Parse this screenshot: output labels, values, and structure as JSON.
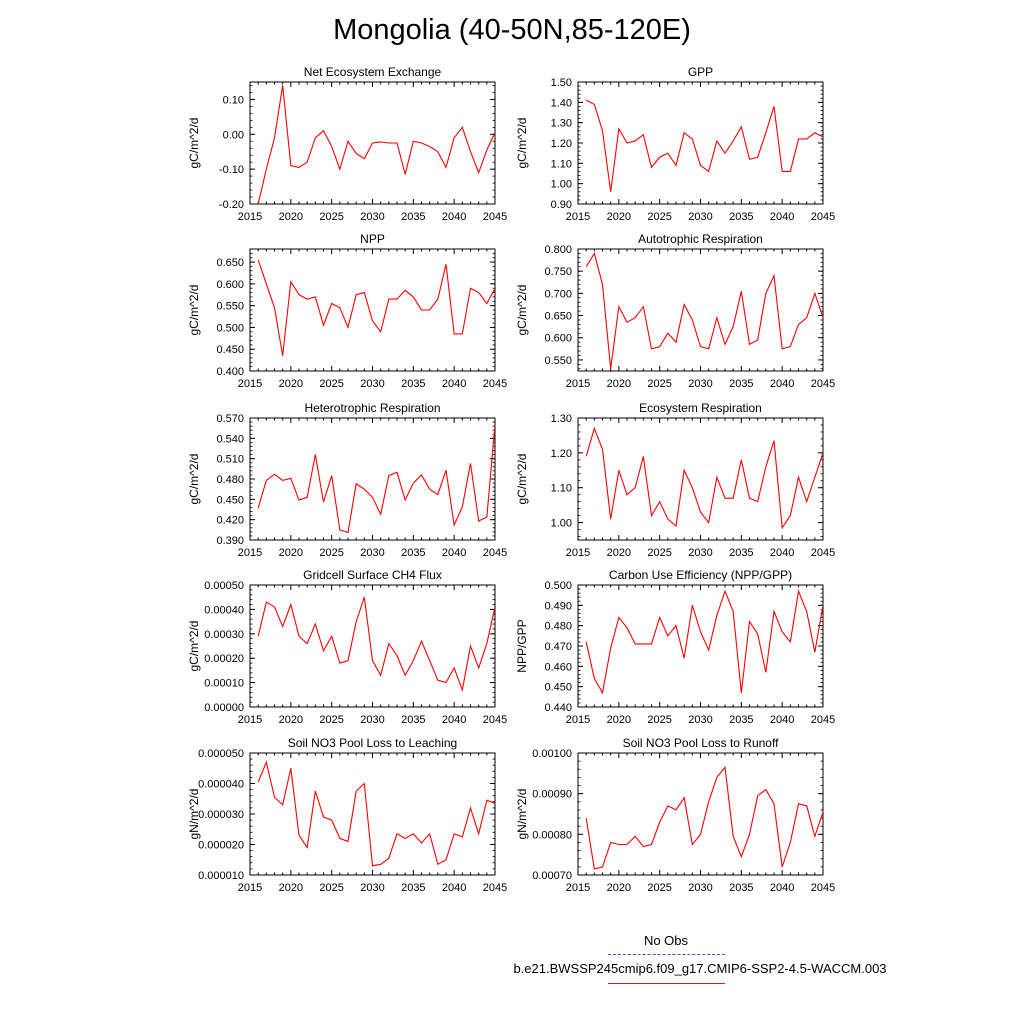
{
  "title": "Mongolia (40-50N,85-120E)",
  "colors": {
    "line": "#ff0000",
    "obs_line": "#4a4ad8",
    "axis": "#000000"
  },
  "legend": {
    "obs_label": "No Obs",
    "sim_label": "b.e21.BWSSP245cmip6.f09_g17.CMIP6-SSP2-4.5-WACCM.003"
  },
  "chart_data": [
    {
      "type": "line",
      "title": "Net Ecosystem Exchange",
      "ylabel": "gC/m^2/d",
      "xlim": [
        2015,
        2045
      ],
      "ylim": [
        -0.2,
        0.15
      ],
      "xticks": [
        2015,
        2020,
        2025,
        2030,
        2035,
        2040,
        2045
      ],
      "xtick_labels": [
        "2015",
        "2020",
        "2025",
        "2030",
        "2035",
        "2040",
        "2045"
      ],
      "yticks": [
        -0.2,
        -0.1,
        0.0,
        0.1
      ],
      "ytick_labels": [
        "-0.20",
        "-0.10",
        "0.00",
        "0.10"
      ],
      "x": [
        2016,
        2017,
        2018,
        2019,
        2020,
        2021,
        2022,
        2023,
        2024,
        2025,
        2026,
        2027,
        2028,
        2029,
        2030,
        2031,
        2032,
        2033,
        2034,
        2035,
        2036,
        2037,
        2038,
        2039,
        2040,
        2041,
        2042,
        2043,
        2044,
        2045
      ],
      "values": [
        -0.2,
        -0.1,
        -0.01,
        0.14,
        -0.09,
        -0.095,
        -0.08,
        -0.01,
        0.01,
        -0.035,
        -0.1,
        -0.02,
        -0.055,
        -0.07,
        -0.025,
        -0.022,
        -0.025,
        -0.025,
        -0.115,
        -0.02,
        -0.025,
        -0.035,
        -0.05,
        -0.095,
        -0.01,
        0.02,
        -0.05,
        -0.11,
        -0.045,
        0.005
      ]
    },
    {
      "type": "line",
      "title": "GPP",
      "ylabel": "gC/m^2/d",
      "xlim": [
        2015,
        2045
      ],
      "ylim": [
        0.9,
        1.5
      ],
      "xticks": [
        2015,
        2020,
        2025,
        2030,
        2035,
        2040,
        2045
      ],
      "xtick_labels": [
        "2015",
        "2020",
        "2025",
        "2030",
        "2035",
        "2040",
        "2045"
      ],
      "yticks": [
        0.9,
        1.0,
        1.1,
        1.2,
        1.3,
        1.4,
        1.5
      ],
      "ytick_labels": [
        "0.90",
        "1.00",
        "1.10",
        "1.20",
        "1.30",
        "1.40",
        "1.50"
      ],
      "x": [
        2016,
        2017,
        2018,
        2019,
        2020,
        2021,
        2022,
        2023,
        2024,
        2025,
        2026,
        2027,
        2028,
        2029,
        2030,
        2031,
        2032,
        2033,
        2034,
        2035,
        2036,
        2037,
        2038,
        2039,
        2040,
        2041,
        2042,
        2043,
        2044,
        2045
      ],
      "values": [
        1.41,
        1.39,
        1.26,
        0.96,
        1.27,
        1.2,
        1.21,
        1.24,
        1.08,
        1.13,
        1.15,
        1.09,
        1.25,
        1.22,
        1.09,
        1.06,
        1.21,
        1.15,
        1.21,
        1.28,
        1.12,
        1.13,
        1.25,
        1.38,
        1.06,
        1.06,
        1.22,
        1.22,
        1.25,
        1.23
      ]
    },
    {
      "type": "line",
      "title": "NPP",
      "ylabel": "gC/m^2/d",
      "xlim": [
        2015,
        2045
      ],
      "ylim": [
        0.4,
        0.68
      ],
      "xticks": [
        2015,
        2020,
        2025,
        2030,
        2035,
        2040,
        2045
      ],
      "xtick_labels": [
        "2015",
        "2020",
        "2025",
        "2030",
        "2035",
        "2040",
        "2045"
      ],
      "yticks": [
        0.4,
        0.45,
        0.5,
        0.55,
        0.6,
        0.65
      ],
      "ytick_labels": [
        "0.400",
        "0.450",
        "0.500",
        "0.550",
        "0.600",
        "0.650"
      ],
      "x": [
        2016,
        2017,
        2018,
        2019,
        2020,
        2021,
        2022,
        2023,
        2024,
        2025,
        2026,
        2027,
        2028,
        2029,
        2030,
        2031,
        2032,
        2033,
        2034,
        2035,
        2036,
        2037,
        2038,
        2039,
        2040,
        2041,
        2042,
        2043,
        2044,
        2045
      ],
      "values": [
        0.655,
        0.6,
        0.545,
        0.435,
        0.605,
        0.575,
        0.565,
        0.57,
        0.505,
        0.555,
        0.545,
        0.5,
        0.575,
        0.58,
        0.515,
        0.49,
        0.565,
        0.565,
        0.585,
        0.57,
        0.54,
        0.54,
        0.565,
        0.645,
        0.485,
        0.485,
        0.59,
        0.58,
        0.555,
        0.59
      ]
    },
    {
      "type": "line",
      "title": "Autotrophic Respiration",
      "ylabel": "gC/m^2/d",
      "xlim": [
        2015,
        2045
      ],
      "ylim": [
        0.525,
        0.8
      ],
      "xticks": [
        2015,
        2020,
        2025,
        2030,
        2035,
        2040,
        2045
      ],
      "xtick_labels": [
        "2015",
        "2020",
        "2025",
        "2030",
        "2035",
        "2040",
        "2045"
      ],
      "yticks": [
        0.55,
        0.6,
        0.65,
        0.7,
        0.75,
        0.8
      ],
      "ytick_labels": [
        "0.550",
        "0.600",
        "0.650",
        "0.700",
        "0.750",
        "0.800"
      ],
      "x": [
        2016,
        2017,
        2018,
        2019,
        2020,
        2021,
        2022,
        2023,
        2024,
        2025,
        2026,
        2027,
        2028,
        2029,
        2030,
        2031,
        2032,
        2033,
        2034,
        2035,
        2036,
        2037,
        2038,
        2039,
        2040,
        2041,
        2042,
        2043,
        2044,
        2045
      ],
      "values": [
        0.76,
        0.79,
        0.72,
        0.53,
        0.67,
        0.635,
        0.645,
        0.67,
        0.575,
        0.58,
        0.61,
        0.59,
        0.675,
        0.64,
        0.58,
        0.575,
        0.645,
        0.585,
        0.625,
        0.705,
        0.585,
        0.595,
        0.7,
        0.74,
        0.575,
        0.58,
        0.63,
        0.645,
        0.7,
        0.645
      ]
    },
    {
      "type": "line",
      "title": "Heterotrophic Respiration",
      "ylabel": "gC/m^2/d",
      "xlim": [
        2015,
        2045
      ],
      "ylim": [
        0.39,
        0.57
      ],
      "xticks": [
        2015,
        2020,
        2025,
        2030,
        2035,
        2040,
        2045
      ],
      "xtick_labels": [
        "2015",
        "2020",
        "2025",
        "2030",
        "2035",
        "2040",
        "2045"
      ],
      "yticks": [
        0.39,
        0.42,
        0.45,
        0.48,
        0.51,
        0.54,
        0.57
      ],
      "ytick_labels": [
        "0.390",
        "0.420",
        "0.450",
        "0.480",
        "0.510",
        "0.540",
        "0.570"
      ],
      "x": [
        2016,
        2017,
        2018,
        2019,
        2020,
        2021,
        2022,
        2023,
        2024,
        2025,
        2026,
        2027,
        2028,
        2029,
        2030,
        2031,
        2032,
        2033,
        2034,
        2035,
        2036,
        2037,
        2038,
        2039,
        2040,
        2041,
        2042,
        2043,
        2044,
        2045
      ],
      "values": [
        0.437,
        0.478,
        0.487,
        0.478,
        0.481,
        0.449,
        0.453,
        0.516,
        0.446,
        0.485,
        0.405,
        0.401,
        0.473,
        0.465,
        0.453,
        0.428,
        0.485,
        0.49,
        0.449,
        0.474,
        0.486,
        0.465,
        0.457,
        0.493,
        0.412,
        0.439,
        0.503,
        0.418,
        0.424,
        0.56
      ]
    },
    {
      "type": "line",
      "title": "Ecosystem Respiration",
      "ylabel": "gC/m^2/d",
      "xlim": [
        2015,
        2045
      ],
      "ylim": [
        0.95,
        1.3
      ],
      "xticks": [
        2015,
        2020,
        2025,
        2030,
        2035,
        2040,
        2045
      ],
      "xtick_labels": [
        "2015",
        "2020",
        "2025",
        "2030",
        "2035",
        "2040",
        "2045"
      ],
      "yticks": [
        1.0,
        1.1,
        1.2,
        1.3
      ],
      "ytick_labels": [
        "1.00",
        "1.10",
        "1.20",
        "1.30"
      ],
      "x": [
        2016,
        2017,
        2018,
        2019,
        2020,
        2021,
        2022,
        2023,
        2024,
        2025,
        2026,
        2027,
        2028,
        2029,
        2030,
        2031,
        2032,
        2033,
        2034,
        2035,
        2036,
        2037,
        2038,
        2039,
        2040,
        2041,
        2042,
        2043,
        2044,
        2045
      ],
      "values": [
        1.19,
        1.27,
        1.21,
        1.01,
        1.15,
        1.08,
        1.1,
        1.19,
        1.02,
        1.06,
        1.01,
        0.99,
        1.15,
        1.1,
        1.03,
        1.0,
        1.13,
        1.07,
        1.07,
        1.18,
        1.07,
        1.06,
        1.16,
        1.235,
        0.985,
        1.02,
        1.13,
        1.06,
        1.13,
        1.2
      ]
    },
    {
      "type": "line",
      "title": "Gridcell Surface CH4 Flux",
      "ylabel": "gC/m^2/d",
      "xlim": [
        2015,
        2045
      ],
      "ylim": [
        0.0,
        0.0005
      ],
      "xticks": [
        2015,
        2020,
        2025,
        2030,
        2035,
        2040,
        2045
      ],
      "xtick_labels": [
        "2015",
        "2020",
        "2025",
        "2030",
        "2035",
        "2040",
        "2045"
      ],
      "yticks": [
        0.0,
        0.0001,
        0.0002,
        0.0003,
        0.0004,
        0.0005
      ],
      "ytick_labels": [
        "0.00000",
        "0.00010",
        "0.00020",
        "0.00030",
        "0.00040",
        "0.00050"
      ],
      "x": [
        2016,
        2017,
        2018,
        2019,
        2020,
        2021,
        2022,
        2023,
        2024,
        2025,
        2026,
        2027,
        2028,
        2029,
        2030,
        2031,
        2032,
        2033,
        2034,
        2035,
        2036,
        2037,
        2038,
        2039,
        2040,
        2041,
        2042,
        2043,
        2044,
        2045
      ],
      "values": [
        0.00029,
        0.00043,
        0.00041,
        0.00033,
        0.00042,
        0.00029,
        0.00026,
        0.00034,
        0.00023,
        0.00029,
        0.00018,
        0.00019,
        0.00035,
        0.00045,
        0.00019,
        0.00013,
        0.00026,
        0.00021,
        0.00013,
        0.00019,
        0.00027,
        0.00019,
        0.00011,
        0.0001,
        0.00016,
        7e-05,
        0.00025,
        0.00016,
        0.00026,
        0.00041
      ]
    },
    {
      "type": "line",
      "title": "Carbon Use Efficiency (NPP/GPP)",
      "ylabel": "NPP/GPP",
      "xlim": [
        2015,
        2045
      ],
      "ylim": [
        0.44,
        0.5
      ],
      "xticks": [
        2015,
        2020,
        2025,
        2030,
        2035,
        2040,
        2045
      ],
      "xtick_labels": [
        "2015",
        "2020",
        "2025",
        "2030",
        "2035",
        "2040",
        "2045"
      ],
      "yticks": [
        0.44,
        0.45,
        0.46,
        0.47,
        0.48,
        0.49,
        0.5
      ],
      "ytick_labels": [
        "0.440",
        "0.450",
        "0.460",
        "0.470",
        "0.480",
        "0.490",
        "0.500"
      ],
      "x": [
        2016,
        2017,
        2018,
        2019,
        2020,
        2021,
        2022,
        2023,
        2024,
        2025,
        2026,
        2027,
        2028,
        2029,
        2030,
        2031,
        2032,
        2033,
        2034,
        2035,
        2036,
        2037,
        2038,
        2039,
        2040,
        2041,
        2042,
        2043,
        2044,
        2045
      ],
      "values": [
        0.472,
        0.454,
        0.447,
        0.469,
        0.484,
        0.479,
        0.471,
        0.471,
        0.471,
        0.484,
        0.475,
        0.48,
        0.464,
        0.49,
        0.477,
        0.468,
        0.485,
        0.497,
        0.487,
        0.447,
        0.482,
        0.476,
        0.457,
        0.487,
        0.477,
        0.472,
        0.497,
        0.487,
        0.467,
        0.49
      ]
    },
    {
      "type": "line",
      "title": "Soil NO3 Pool Loss to Leaching",
      "ylabel": "gN/m^2/d",
      "xlim": [
        2015,
        2045
      ],
      "ylim": [
        1e-05,
        5e-05
      ],
      "xticks": [
        2015,
        2020,
        2025,
        2030,
        2035,
        2040,
        2045
      ],
      "xtick_labels": [
        "2015",
        "2020",
        "2025",
        "2030",
        "2035",
        "2040",
        "2045"
      ],
      "yticks": [
        1e-05,
        2e-05,
        3e-05,
        4e-05,
        5e-05
      ],
      "ytick_labels": [
        "0.000010",
        "0.000020",
        "0.000030",
        "0.000040",
        "0.000050"
      ],
      "x": [
        2016,
        2017,
        2018,
        2019,
        2020,
        2021,
        2022,
        2023,
        2024,
        2025,
        2026,
        2027,
        2028,
        2029,
        2030,
        2031,
        2032,
        2033,
        2034,
        2035,
        2036,
        2037,
        2038,
        2039,
        2040,
        2041,
        2042,
        2043,
        2044,
        2045
      ],
      "values": [
        4.05e-05,
        4.7e-05,
        3.55e-05,
        3.3e-05,
        4.5e-05,
        2.3e-05,
        1.9e-05,
        3.75e-05,
        2.9e-05,
        2.8e-05,
        2.2e-05,
        2.1e-05,
        3.75e-05,
        4e-05,
        1.3e-05,
        1.35e-05,
        1.55e-05,
        2.35e-05,
        2.2e-05,
        2.35e-05,
        2.05e-05,
        2.35e-05,
        1.35e-05,
        1.5e-05,
        2.35e-05,
        2.25e-05,
        3.2e-05,
        2.35e-05,
        3.45e-05,
        3.35e-05
      ]
    },
    {
      "type": "line",
      "title": "Soil NO3 Pool Loss to Runoff",
      "ylabel": "gN/m^2/d",
      "xlim": [
        2015,
        2045
      ],
      "ylim": [
        0.0007,
        0.001
      ],
      "xticks": [
        2015,
        2020,
        2025,
        2030,
        2035,
        2040,
        2045
      ],
      "xtick_labels": [
        "2015",
        "2020",
        "2025",
        "2030",
        "2035",
        "2040",
        "2045"
      ],
      "yticks": [
        0.0007,
        0.0008,
        0.0009,
        0.001
      ],
      "ytick_labels": [
        "0.00070",
        "0.00080",
        "0.00090",
        "0.00100"
      ],
      "x": [
        2016,
        2017,
        2018,
        2019,
        2020,
        2021,
        2022,
        2023,
        2024,
        2025,
        2026,
        2027,
        2028,
        2029,
        2030,
        2031,
        2032,
        2033,
        2034,
        2035,
        2036,
        2037,
        2038,
        2039,
        2040,
        2041,
        2042,
        2043,
        2044,
        2045
      ],
      "values": [
        0.00084,
        0.000715,
        0.00072,
        0.00078,
        0.000775,
        0.000775,
        0.000795,
        0.00077,
        0.000775,
        0.00083,
        0.00087,
        0.00086,
        0.00089,
        0.000775,
        0.0008,
        0.00088,
        0.00094,
        0.000965,
        0.000795,
        0.000745,
        0.0008,
        0.000895,
        0.00091,
        0.000875,
        0.00072,
        0.00078,
        0.000875,
        0.00087,
        0.000795,
        0.000855
      ]
    }
  ]
}
